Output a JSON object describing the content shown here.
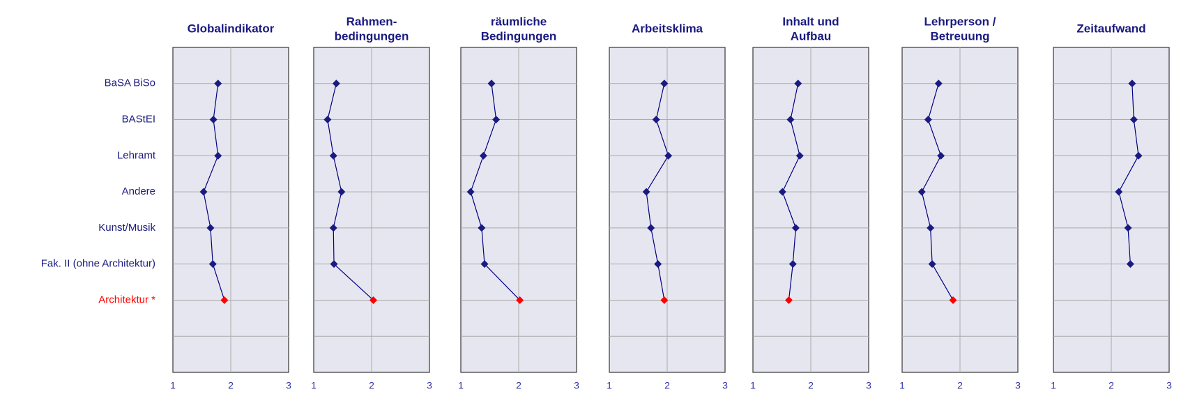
{
  "chart_data": [
    {
      "type": "line",
      "title": [
        "Globalindikator"
      ],
      "color": "#000080",
      "categories": [
        "BaSA BiSo",
        "BAStEI",
        "Lehramt",
        "Andere",
        "Kunst/Musik",
        "Fak. II (ohne Architektur)",
        "Architektur *",
        null
      ],
      "category_colors": [
        "#1a1a80",
        "#1a1a80",
        "#1a1a80",
        "#1a1a80",
        "#1a1a80",
        "#1a1a80",
        "#ff0000",
        "#1a1a80"
      ],
      "values": [
        1.78,
        1.7,
        1.78,
        1.53,
        1.65,
        1.69,
        1.89,
        null
      ],
      "xlim": [
        1,
        3
      ],
      "xticks": [
        1,
        2,
        3
      ],
      "grid": true
    },
    {
      "type": "line",
      "title": [
        "Rahmen-",
        "bedingungen"
      ],
      "color": "#000080",
      "values": [
        1.39,
        1.24,
        1.34,
        1.48,
        1.34,
        1.35,
        2.03,
        null
      ],
      "xlim": [
        1,
        3
      ],
      "xticks": [
        1,
        2,
        3
      ],
      "grid": true
    },
    {
      "type": "line",
      "title": [
        "räumliche",
        "Bedingungen"
      ],
      "color": "#000080",
      "values": [
        1.53,
        1.61,
        1.39,
        1.17,
        1.36,
        1.41,
        2.02,
        null
      ],
      "xlim": [
        1,
        3
      ],
      "xticks": [
        1,
        2,
        3
      ],
      "grid": true
    },
    {
      "type": "line",
      "title": [
        "Arbeitsklima"
      ],
      "color": "#000080",
      "values": [
        1.95,
        1.81,
        2.02,
        1.64,
        1.72,
        1.84,
        1.95,
        null
      ],
      "xlim": [
        1,
        3
      ],
      "xticks": [
        1,
        2,
        3
      ],
      "grid": true
    },
    {
      "type": "line",
      "title": [
        "Inhalt und",
        "Aufbau"
      ],
      "color": "#000080",
      "values": [
        1.78,
        1.65,
        1.81,
        1.51,
        1.74,
        1.69,
        1.62,
        null
      ],
      "xlim": [
        1,
        3
      ],
      "xticks": [
        1,
        2,
        3
      ],
      "grid": true
    },
    {
      "type": "line",
      "title": [
        "Lehrperson /",
        "Betreuung"
      ],
      "color": "#000080",
      "values": [
        1.63,
        1.45,
        1.67,
        1.34,
        1.49,
        1.52,
        1.88,
        null
      ],
      "xlim": [
        1,
        3
      ],
      "xticks": [
        1,
        2,
        3
      ],
      "grid": true
    },
    {
      "type": "line",
      "title": [
        "Zeitaufwand"
      ],
      "color": "#000080",
      "values": [
        2.36,
        2.39,
        2.47,
        2.13,
        2.29,
        2.33,
        null,
        null
      ],
      "xlim": [
        1,
        3
      ],
      "xticks": [
        1,
        2,
        3
      ],
      "grid": true
    }
  ]
}
